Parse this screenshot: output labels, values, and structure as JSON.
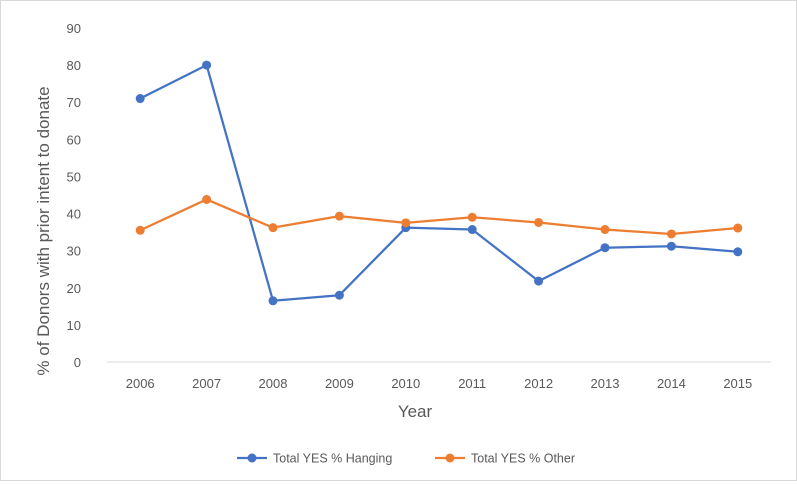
{
  "chart_data": {
    "type": "line",
    "title": "",
    "xlabel": "Year",
    "ylabel": "% of Donors with prior intent to donate",
    "ylim": [
      0,
      90
    ],
    "yticks": [
      0,
      10,
      20,
      30,
      40,
      50,
      60,
      70,
      80,
      90
    ],
    "categories": [
      "2006",
      "2007",
      "2008",
      "2009",
      "2010",
      "2011",
      "2012",
      "2013",
      "2014",
      "2015"
    ],
    "grid": false,
    "legend": "bottom",
    "series": [
      {
        "name": "Total YES % Hanging",
        "color": "#4472c4",
        "values": [
          71,
          80,
          16.5,
          18,
          36.2,
          35.7,
          21.8,
          30.8,
          31.2,
          29.7
        ]
      },
      {
        "name": "Total YES % Other",
        "color": "#ed7d31",
        "values": [
          35.5,
          43.8,
          36.2,
          39.3,
          37.5,
          39,
          37.6,
          35.7,
          34.5,
          36.1
        ]
      }
    ]
  }
}
